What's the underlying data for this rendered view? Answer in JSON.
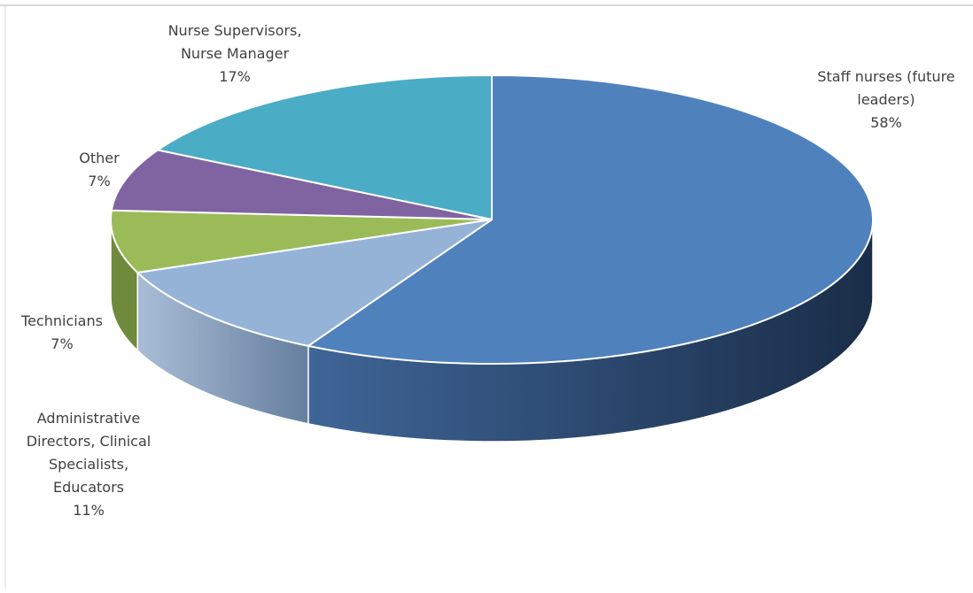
{
  "chart_data": {
    "type": "pie",
    "style": "3d",
    "title": "",
    "start_angle_deg": 0,
    "direction": "clockwise",
    "categories": [
      "Staff nurses (future leaders)",
      "Administrative Directors, Clinical Specialists, Educators",
      "Technicians",
      "Other",
      "Nurse Supervisors, Nurse Manager"
    ],
    "values": [
      58,
      11,
      7,
      7,
      17
    ],
    "labels": [
      {
        "lines": [
          "Staff nurses (future",
          "leaders)"
        ],
        "pct": "58%"
      },
      {
        "lines": [
          "Administrative",
          "Directors, Clinical",
          "Specialists,",
          "Educators"
        ],
        "pct": "11%"
      },
      {
        "lines": [
          "Technicians"
        ],
        "pct": "7%"
      },
      {
        "lines": [
          "Other"
        ],
        "pct": "7%"
      },
      {
        "lines": [
          "Nurse Supervisors,",
          "Nurse Manager"
        ],
        "pct": "17%"
      }
    ],
    "colors": [
      "#4f81bd",
      "#95b3d7",
      "#9bbb59",
      "#8064a2",
      "#4bacc6"
    ],
    "side_colors": [
      "#1f3555",
      "#7a93b4",
      "#6f8a3c",
      "#5c4878",
      "#2f8ba3"
    ],
    "legend": "none",
    "grid": false
  }
}
